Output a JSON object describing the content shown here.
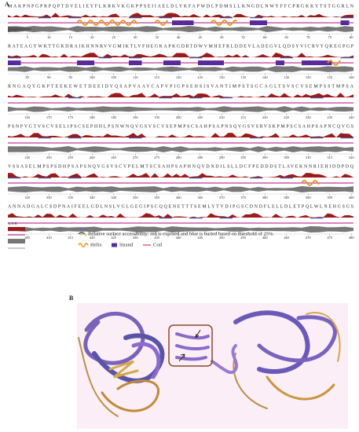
{
  "panel_a": {
    "label": "A",
    "rows": [
      {
        "sequence": "MAKPNPGPRPQPTDVELIEYFLKRKVKGKPPSEIIAELDLYKFAPWDLPDMSLLKNGDLNWYFFCPRGKKYTSTGGRLN",
        "ticks": [
          5,
          10,
          15,
          20,
          25,
          30,
          35,
          40,
          45,
          50,
          55,
          60,
          65,
          70,
          75,
          80
        ]
      },
      {
        "sequence": "RATEAGYWKTTGKDRAIKHNNRVVGMIKTLVFHEGKAPKGDRTDWVMHEFRLDDEVLADEGVLQDSYVICRVYQKEGPGP",
        "ticks": [
          85,
          90,
          95,
          100,
          105,
          110,
          115,
          120,
          125,
          130,
          135,
          140,
          145,
          150,
          155,
          160
        ]
      },
      {
        "sequence": "RNGAQYGKPTEEKEWETDEEIDVQSAPVAAVCAPVPIGPSEHSISVANTIMPSTSGCAGLTSVSCVSEMPSSTMPSA",
        "ticks": [
          165,
          170,
          175,
          180,
          185,
          190,
          195,
          200,
          205,
          210,
          215,
          220,
          225,
          230,
          235,
          240
        ]
      },
      {
        "sequence": "PSNPVGTVSCVSELIPSCSEPHHLPSNWNQVGSVSCVSEPMPSCSAHPSAPNSQVGSVSRVSKPMPSCSAHPSAPNCQVGS",
        "ticks": [
          245,
          250,
          255,
          260,
          265,
          270,
          275,
          280,
          285,
          290,
          295,
          300,
          305,
          310,
          315,
          320
        ]
      },
      {
        "sequence": "VSSASELMPSPSDHPSAPSNQVGSVSCVPELMTSCSAHPSAPHNQVDNDILSLLDCFPEDDDSTLAVEKNNRIEHIDDPDQ",
        "ticks": [
          325,
          330,
          335,
          340,
          345,
          350,
          355,
          360,
          365,
          370,
          375,
          380,
          385,
          390,
          395,
          400
        ]
      },
      {
        "sequence": "ANNADGALCSDPNAIFEELGDLNSLVGLGEGIPSCQQENETTTSEMLYTVDIPGSCDNDFLELLDLETPQLWLNEHGSGS",
        "ticks": [
          405,
          410,
          415,
          420,
          425,
          430,
          435,
          440,
          445,
          450,
          455,
          460,
          465,
          470,
          475,
          480
        ]
      }
    ],
    "key_letters": "Q D K",
    "legend": {
      "accessibility": "Relative surface accessibility: red is exposed and blue is buried based on threshold of 25%.",
      "helix": "Helix",
      "strand": "Strand",
      "coil": "Coil"
    }
  },
  "panel_b": {
    "label": "B"
  }
}
